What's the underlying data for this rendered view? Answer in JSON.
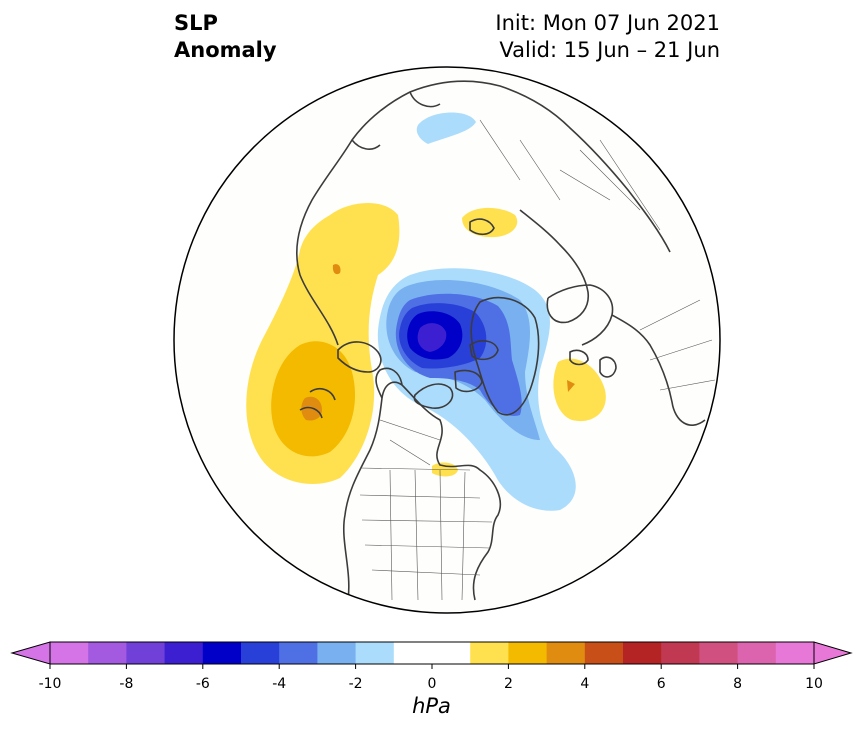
{
  "title": {
    "line1": "SLP",
    "line2": "Anomaly"
  },
  "init": "Init: Mon 07 Jun 2021",
  "valid": "Valid: 15 Jun – 21 Jun",
  "colorbar": {
    "ticks": [
      "-10",
      "-8",
      "-6",
      "-4",
      "-2",
      "0",
      "2",
      "4",
      "6",
      "8",
      "10"
    ],
    "units": "hPa",
    "colors": [
      "#d574e6",
      "#a35ae0",
      "#7040d8",
      "#3c1fd0",
      "#0000c8",
      "#2840d8",
      "#4f70e4",
      "#78b0f0",
      "#acdcfc",
      "#ffffff",
      "#ffffff",
      "#ffe150",
      "#f4ba00",
      "#e08c10",
      "#c85018",
      "#b42424",
      "#c03852",
      "#d05080",
      "#dc64ae",
      "#e878d8"
    ],
    "under_color": "#d574e6",
    "over_color": "#e878d8"
  },
  "map": {
    "projection": "north-polar-stereographic",
    "background": "#fefefc",
    "coast_color": "#3c3c3c"
  }
}
